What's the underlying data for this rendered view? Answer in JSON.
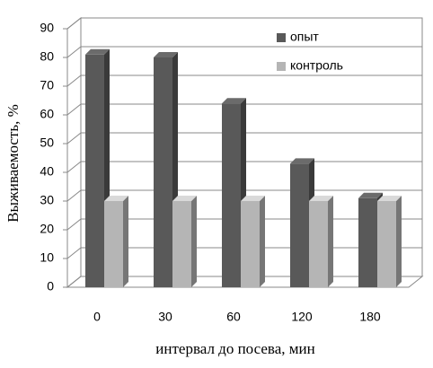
{
  "chart_data": {
    "type": "bar3d",
    "categories": [
      "0",
      "30",
      "60",
      "120",
      "180"
    ],
    "series": [
      {
        "name": "опыт",
        "color": "#595959",
        "values": [
          81,
          80,
          64,
          43,
          31
        ]
      },
      {
        "name": "контроль",
        "color": "#b5b5b5",
        "values": [
          30,
          30,
          30,
          30,
          30
        ]
      }
    ],
    "ylim": [
      0,
      90
    ],
    "yticks": [
      0,
      10,
      20,
      30,
      40,
      50,
      60,
      70,
      80,
      90
    ],
    "ylabel": "Выживаемость, %",
    "xlabel": "интервал до посева, мин",
    "grid": true,
    "legend": "top-right"
  }
}
